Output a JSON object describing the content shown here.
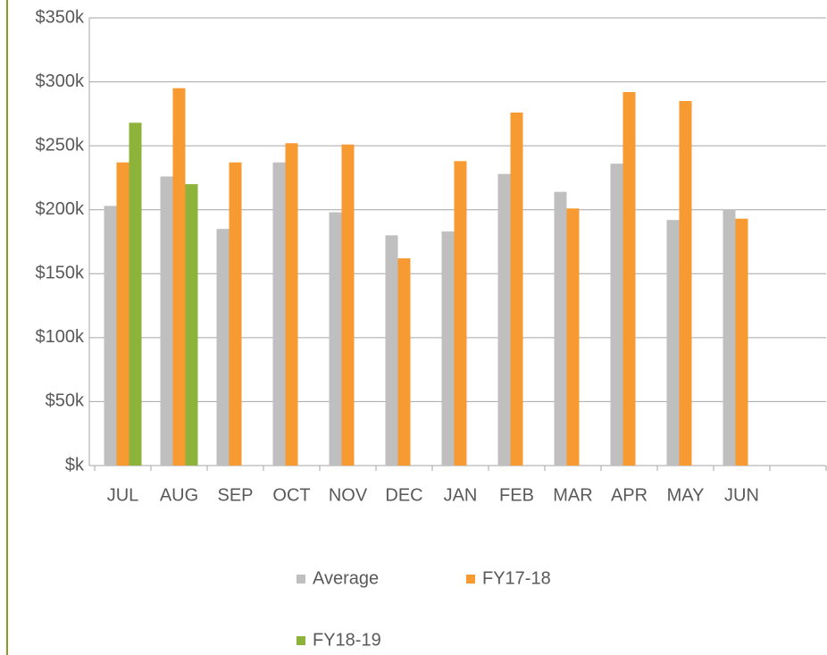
{
  "chart_data": {
    "type": "bar",
    "categories": [
      "JUL",
      "AUG",
      "SEP",
      "OCT",
      "NOV",
      "DEC",
      "JAN",
      "FEB",
      "MAR",
      "APR",
      "MAY",
      "JUN",
      null
    ],
    "series": [
      {
        "name": "Average",
        "color": "#bfbfbf",
        "values": [
          203000,
          226000,
          185000,
          237000,
          198000,
          180000,
          183000,
          228000,
          214000,
          236000,
          192000,
          200000,
          null
        ]
      },
      {
        "name": "FY17-18",
        "color": "#f79a32",
        "values": [
          237000,
          295000,
          237000,
          252000,
          251000,
          162000,
          238000,
          276000,
          201000,
          292000,
          285000,
          193000,
          null
        ]
      },
      {
        "name": "FY18-19",
        "color": "#8db33a",
        "values": [
          268000,
          220000,
          null,
          null,
          null,
          null,
          null,
          null,
          null,
          null,
          null,
          null,
          null
        ]
      }
    ],
    "ylim": [
      0,
      350000
    ],
    "yticks": [
      {
        "value": 0,
        "label": "$k"
      },
      {
        "value": 50000,
        "label": "$50k"
      },
      {
        "value": 100000,
        "label": "$100k"
      },
      {
        "value": 150000,
        "label": "$150k"
      },
      {
        "value": 200000,
        "label": "$200k"
      },
      {
        "value": 250000,
        "label": "$250k"
      },
      {
        "value": 300000,
        "label": "$300k"
      },
      {
        "value": 350000,
        "label": "$350k"
      }
    ],
    "grid": true
  }
}
